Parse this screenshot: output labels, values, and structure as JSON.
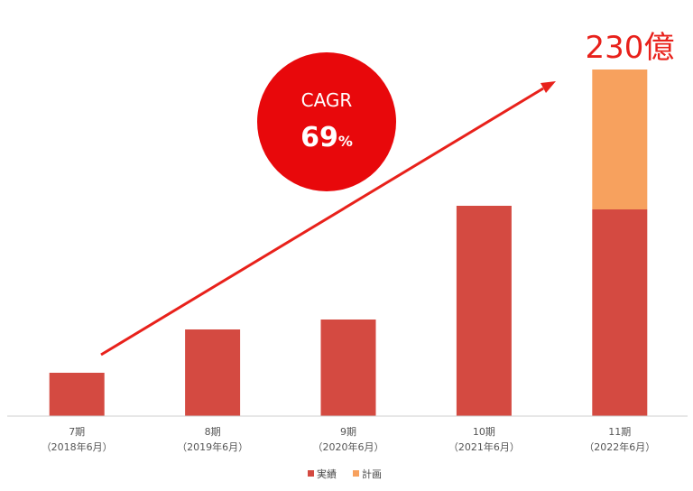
{
  "chart_data": {
    "type": "bar",
    "stacked": true,
    "categories": [
      [
        "7期",
        "（2018年6月）"
      ],
      [
        "8期",
        "（2019年6月）"
      ],
      [
        "9期",
        "（2020年6月）"
      ],
      [
        "10期",
        "（2021年6月）"
      ],
      [
        "11期",
        "（2022年6月）"
      ]
    ],
    "series": [
      {
        "name": "実績",
        "color": "#d44a41",
        "values": [
          48,
          96,
          107,
          233,
          229
        ]
      },
      {
        "name": "計画",
        "color": "#f7a15e",
        "values": [
          0,
          0,
          0,
          0,
          155
        ]
      }
    ],
    "ylim": [
      0,
      384
    ],
    "grid": false,
    "legend": "bottom-center",
    "annotations": {
      "total_label": "230億",
      "total_label_color": "#e8211b",
      "cagr_title": "CAGR",
      "cagr_value": "69",
      "cagr_unit": "%",
      "cagr_color": "#e8080b",
      "trend_arrow_color": "#e8211b"
    }
  }
}
